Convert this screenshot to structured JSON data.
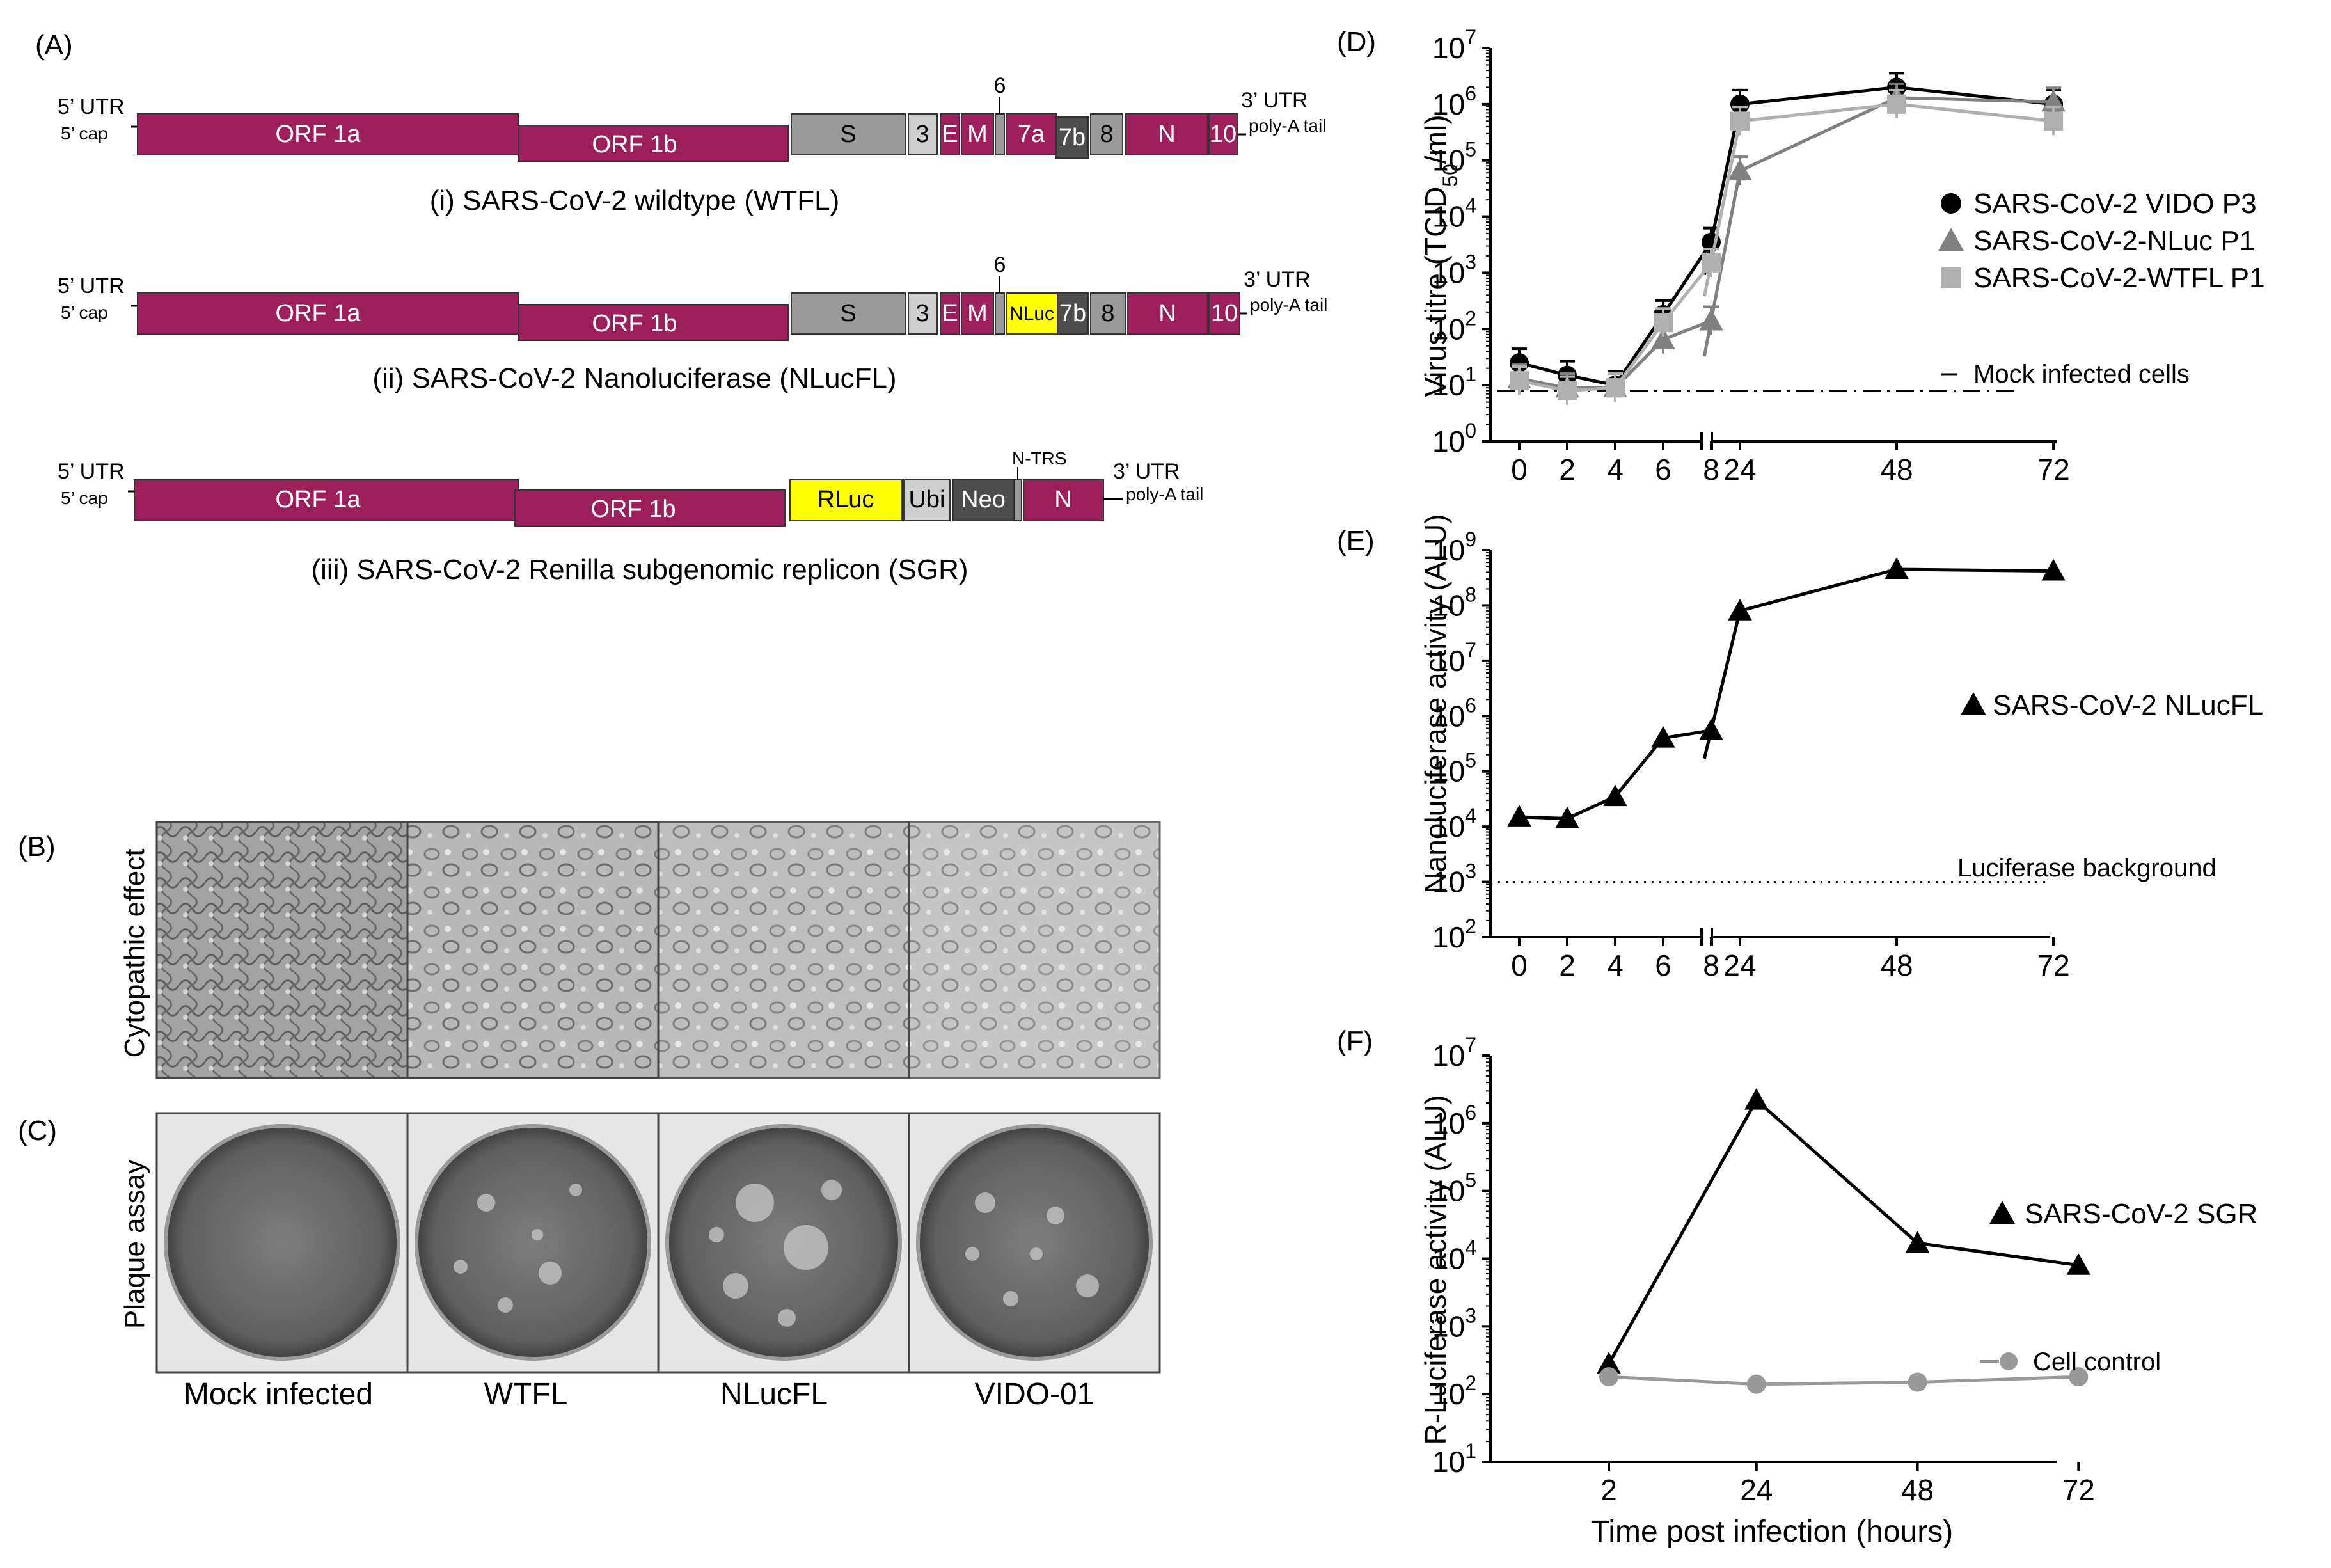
{
  "colors": {
    "orf": "#9c1f5c",
    "gray": "#9a9a9a",
    "light_gray": "#cfcfcf",
    "dark_gray": "#4d4d4d",
    "yellow": "#ffff00",
    "black": "#000000",
    "mid_gray": "#808080",
    "pale_gray": "#b0b0b0"
  },
  "panel_labels": {
    "A": "(A)",
    "B": "(B)",
    "C": "(C)",
    "D": "(D)",
    "E": "(E)",
    "F": "(F)"
  },
  "genomes": {
    "utr5": "5’ UTR",
    "cap5": "5’ cap",
    "utr3": "3’ UTR",
    "polyA": "poly-A tail",
    "orf1a": "ORF 1a",
    "orf1b": "ORF 1b",
    "s": "S",
    "g3": "3",
    "e": "E",
    "m": "M",
    "g6": "6",
    "g7a": "7a",
    "g7b": "7b",
    "g8": "8",
    "n": "N",
    "g10": "10",
    "nluc": "NLuc",
    "rluc": "RLuc",
    "ubi": "Ubi",
    "neo": "Neo",
    "ntrs": "N-TRS",
    "caption_wtfl": "(i) SARS-CoV-2 wildtype (WTFL)",
    "caption_nluc": "(ii) SARS-CoV-2 Nanoluciferase (NLucFL)",
    "caption_sgr": "(iii) SARS-CoV-2 Renilla subgenomic replicon (SGR)"
  },
  "images": {
    "cpe_label": "Cytopathic effect",
    "plaque_label": "Plaque assay",
    "columns": [
      "Mock infected",
      "WTFL",
      "NLucFL",
      "VIDO-01"
    ]
  },
  "chart_data": [
    {
      "panel": "D",
      "type": "line",
      "ylabel_pre": "Virus titre (TCID",
      "ylabel_sub": "50",
      "ylabel_post": "/ml)",
      "yscale": "log",
      "ylim_exp": [
        0,
        7
      ],
      "yticks_exp": [
        0,
        1,
        2,
        3,
        4,
        5,
        6,
        7
      ],
      "xticks": [
        0,
        2,
        4,
        6,
        8,
        24,
        48,
        72
      ],
      "series": [
        {
          "name": "SARS-CoV-2 VIDO P3",
          "marker": "circle",
          "color": "#000000",
          "x": [
            0,
            2,
            4,
            6,
            8,
            24,
            48,
            72
          ],
          "y": [
            25,
            15,
            10,
            180,
            3500,
            1000000,
            2000000,
            1000000
          ]
        },
        {
          "name": "SARS-CoV-2-NLuc P1",
          "marker": "triangle",
          "color": "#808080",
          "x": [
            0,
            2,
            4,
            6,
            8,
            24,
            48,
            72
          ],
          "y": [
            13,
            9,
            9,
            65,
            140,
            65000,
            1300000,
            1100000
          ]
        },
        {
          "name": "SARS-CoV-2-WTFL P1",
          "marker": "square",
          "color": "#b0b0b0",
          "x": [
            0,
            2,
            4,
            6,
            8,
            24,
            48,
            72
          ],
          "y": [
            12,
            8,
            9,
            130,
            1500,
            500000,
            1000000,
            500000
          ]
        }
      ],
      "mock_label": "Mock infected cells"
    },
    {
      "panel": "E",
      "type": "line",
      "ylabel": "Nanoluciferase activity (ALU)",
      "yscale": "log",
      "ylim_exp": [
        2,
        9
      ],
      "yticks_exp": [
        2,
        3,
        4,
        5,
        6,
        7,
        8,
        9
      ],
      "xticks": [
        0,
        2,
        4,
        6,
        8,
        24,
        48,
        72
      ],
      "series": [
        {
          "name": "SARS-CoV-2 NLucFL",
          "marker": "triangle",
          "color": "#000000",
          "x": [
            0,
            2,
            4,
            6,
            8,
            24,
            48,
            72
          ],
          "y": [
            15000,
            14000,
            35000,
            400000,
            550000,
            80000000,
            450000000,
            420000000
          ]
        }
      ],
      "background_label": "Luciferase background",
      "background_value": 1000
    },
    {
      "panel": "F",
      "type": "line",
      "ylabel": "R-Luciferase activity (ALU)",
      "xlabel": "Time post infection (hours)",
      "yscale": "log",
      "ylim_exp": [
        1,
        7
      ],
      "yticks_exp": [
        1,
        2,
        3,
        4,
        5,
        6,
        7
      ],
      "xticks": [
        2,
        24,
        48,
        72
      ],
      "series": [
        {
          "name": "SARS-CoV-2 SGR",
          "marker": "triangle",
          "color": "#000000",
          "x": [
            2,
            24,
            48,
            72
          ],
          "y": [
            280,
            2200000,
            17000,
            8000
          ]
        },
        {
          "name": "Cell control",
          "marker": "circle",
          "color": "#999999",
          "x": [
            2,
            24,
            48,
            72
          ],
          "y": [
            180,
            140,
            150,
            180
          ]
        }
      ]
    }
  ]
}
